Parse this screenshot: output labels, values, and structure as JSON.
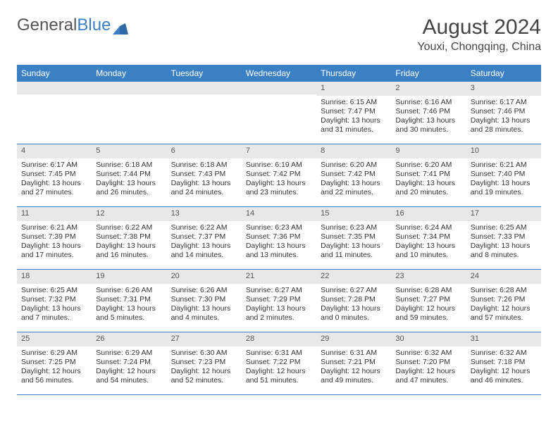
{
  "brand": {
    "name_a": "General",
    "name_b": "Blue"
  },
  "title": "August 2024",
  "location": "Youxi, Chongqing, China",
  "colors": {
    "header_bg": "#3b7fc4",
    "header_text": "#ffffff",
    "daynum_bg": "#e8e8e8",
    "text": "#333333",
    "border": "#3b7fc4",
    "logo_gray": "#555555",
    "logo_blue": "#3b7fc4",
    "background": "#ffffff"
  },
  "fonts": {
    "title_size_pt": 22,
    "location_size_pt": 12,
    "header_size_pt": 9,
    "body_size_pt": 8
  },
  "day_names": [
    "Sunday",
    "Monday",
    "Tuesday",
    "Wednesday",
    "Thursday",
    "Friday",
    "Saturday"
  ],
  "weeks": [
    [
      {
        "num": "",
        "sunrise": "",
        "sunset": "",
        "daylight": ""
      },
      {
        "num": "",
        "sunrise": "",
        "sunset": "",
        "daylight": ""
      },
      {
        "num": "",
        "sunrise": "",
        "sunset": "",
        "daylight": ""
      },
      {
        "num": "",
        "sunrise": "",
        "sunset": "",
        "daylight": ""
      },
      {
        "num": "1",
        "sunrise": "Sunrise: 6:15 AM",
        "sunset": "Sunset: 7:47 PM",
        "daylight": "Daylight: 13 hours and 31 minutes."
      },
      {
        "num": "2",
        "sunrise": "Sunrise: 6:16 AM",
        "sunset": "Sunset: 7:46 PM",
        "daylight": "Daylight: 13 hours and 30 minutes."
      },
      {
        "num": "3",
        "sunrise": "Sunrise: 6:17 AM",
        "sunset": "Sunset: 7:46 PM",
        "daylight": "Daylight: 13 hours and 28 minutes."
      }
    ],
    [
      {
        "num": "4",
        "sunrise": "Sunrise: 6:17 AM",
        "sunset": "Sunset: 7:45 PM",
        "daylight": "Daylight: 13 hours and 27 minutes."
      },
      {
        "num": "5",
        "sunrise": "Sunrise: 6:18 AM",
        "sunset": "Sunset: 7:44 PM",
        "daylight": "Daylight: 13 hours and 26 minutes."
      },
      {
        "num": "6",
        "sunrise": "Sunrise: 6:18 AM",
        "sunset": "Sunset: 7:43 PM",
        "daylight": "Daylight: 13 hours and 24 minutes."
      },
      {
        "num": "7",
        "sunrise": "Sunrise: 6:19 AM",
        "sunset": "Sunset: 7:42 PM",
        "daylight": "Daylight: 13 hours and 23 minutes."
      },
      {
        "num": "8",
        "sunrise": "Sunrise: 6:20 AM",
        "sunset": "Sunset: 7:42 PM",
        "daylight": "Daylight: 13 hours and 22 minutes."
      },
      {
        "num": "9",
        "sunrise": "Sunrise: 6:20 AM",
        "sunset": "Sunset: 7:41 PM",
        "daylight": "Daylight: 13 hours and 20 minutes."
      },
      {
        "num": "10",
        "sunrise": "Sunrise: 6:21 AM",
        "sunset": "Sunset: 7:40 PM",
        "daylight": "Daylight: 13 hours and 19 minutes."
      }
    ],
    [
      {
        "num": "11",
        "sunrise": "Sunrise: 6:21 AM",
        "sunset": "Sunset: 7:39 PM",
        "daylight": "Daylight: 13 hours and 17 minutes."
      },
      {
        "num": "12",
        "sunrise": "Sunrise: 6:22 AM",
        "sunset": "Sunset: 7:38 PM",
        "daylight": "Daylight: 13 hours and 16 minutes."
      },
      {
        "num": "13",
        "sunrise": "Sunrise: 6:22 AM",
        "sunset": "Sunset: 7:37 PM",
        "daylight": "Daylight: 13 hours and 14 minutes."
      },
      {
        "num": "14",
        "sunrise": "Sunrise: 6:23 AM",
        "sunset": "Sunset: 7:36 PM",
        "daylight": "Daylight: 13 hours and 13 minutes."
      },
      {
        "num": "15",
        "sunrise": "Sunrise: 6:23 AM",
        "sunset": "Sunset: 7:35 PM",
        "daylight": "Daylight: 13 hours and 11 minutes."
      },
      {
        "num": "16",
        "sunrise": "Sunrise: 6:24 AM",
        "sunset": "Sunset: 7:34 PM",
        "daylight": "Daylight: 13 hours and 10 minutes."
      },
      {
        "num": "17",
        "sunrise": "Sunrise: 6:25 AM",
        "sunset": "Sunset: 7:33 PM",
        "daylight": "Daylight: 13 hours and 8 minutes."
      }
    ],
    [
      {
        "num": "18",
        "sunrise": "Sunrise: 6:25 AM",
        "sunset": "Sunset: 7:32 PM",
        "daylight": "Daylight: 13 hours and 7 minutes."
      },
      {
        "num": "19",
        "sunrise": "Sunrise: 6:26 AM",
        "sunset": "Sunset: 7:31 PM",
        "daylight": "Daylight: 13 hours and 5 minutes."
      },
      {
        "num": "20",
        "sunrise": "Sunrise: 6:26 AM",
        "sunset": "Sunset: 7:30 PM",
        "daylight": "Daylight: 13 hours and 4 minutes."
      },
      {
        "num": "21",
        "sunrise": "Sunrise: 6:27 AM",
        "sunset": "Sunset: 7:29 PM",
        "daylight": "Daylight: 13 hours and 2 minutes."
      },
      {
        "num": "22",
        "sunrise": "Sunrise: 6:27 AM",
        "sunset": "Sunset: 7:28 PM",
        "daylight": "Daylight: 13 hours and 0 minutes."
      },
      {
        "num": "23",
        "sunrise": "Sunrise: 6:28 AM",
        "sunset": "Sunset: 7:27 PM",
        "daylight": "Daylight: 12 hours and 59 minutes."
      },
      {
        "num": "24",
        "sunrise": "Sunrise: 6:28 AM",
        "sunset": "Sunset: 7:26 PM",
        "daylight": "Daylight: 12 hours and 57 minutes."
      }
    ],
    [
      {
        "num": "25",
        "sunrise": "Sunrise: 6:29 AM",
        "sunset": "Sunset: 7:25 PM",
        "daylight": "Daylight: 12 hours and 56 minutes."
      },
      {
        "num": "26",
        "sunrise": "Sunrise: 6:29 AM",
        "sunset": "Sunset: 7:24 PM",
        "daylight": "Daylight: 12 hours and 54 minutes."
      },
      {
        "num": "27",
        "sunrise": "Sunrise: 6:30 AM",
        "sunset": "Sunset: 7:23 PM",
        "daylight": "Daylight: 12 hours and 52 minutes."
      },
      {
        "num": "28",
        "sunrise": "Sunrise: 6:31 AM",
        "sunset": "Sunset: 7:22 PM",
        "daylight": "Daylight: 12 hours and 51 minutes."
      },
      {
        "num": "29",
        "sunrise": "Sunrise: 6:31 AM",
        "sunset": "Sunset: 7:21 PM",
        "daylight": "Daylight: 12 hours and 49 minutes."
      },
      {
        "num": "30",
        "sunrise": "Sunrise: 6:32 AM",
        "sunset": "Sunset: 7:20 PM",
        "daylight": "Daylight: 12 hours and 47 minutes."
      },
      {
        "num": "31",
        "sunrise": "Sunrise: 6:32 AM",
        "sunset": "Sunset: 7:18 PM",
        "daylight": "Daylight: 12 hours and 46 minutes."
      }
    ]
  ]
}
